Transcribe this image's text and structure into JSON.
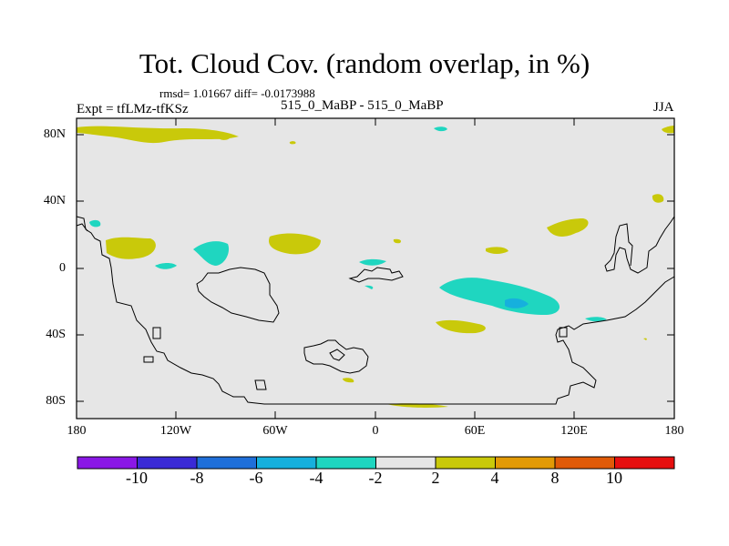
{
  "title": "Tot. Cloud Cov. (random overlap, in %)",
  "stats": "rmsd= 1.01667 diff= -0.0173988",
  "expt": "Expt = tfLMz-tfKSz",
  "center_label": "515_0_MaBP - 515_0_MaBP",
  "season": "JJA",
  "y_ticks": [
    "80N",
    "40N",
    "0",
    "40S",
    "80S"
  ],
  "x_ticks": [
    "180",
    "120W",
    "60W",
    "0",
    "60E",
    "120E",
    "180"
  ],
  "colorbar": {
    "colors": [
      "#8a17e6",
      "#3a2ad6",
      "#1f6fd9",
      "#16b0dd",
      "#1fd6c0",
      "#e6e6e6",
      "#c9c90a",
      "#e29a06",
      "#e05a08",
      "#e60f0f"
    ],
    "labels": [
      "-10",
      "-8",
      "-6",
      "-4",
      "-2",
      "2",
      "4",
      "8",
      "10"
    ]
  },
  "colors": {
    "background": "#e6e6e6",
    "positive": "#c9c90a",
    "negative": "#1fd6c0",
    "strong_negative": "#16b0dd"
  }
}
